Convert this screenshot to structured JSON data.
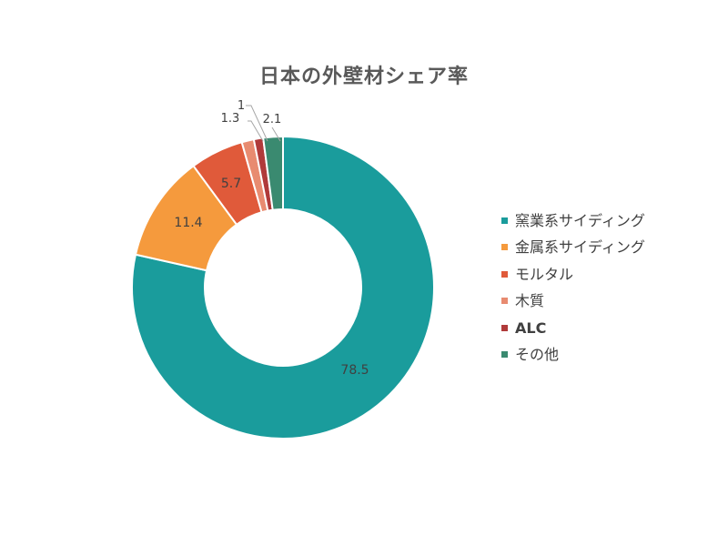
{
  "chart_data": {
    "type": "pie",
    "donut": true,
    "title": "日本の外壁材シェア率",
    "categories": [
      "窯業系サイディング",
      "金属系サイディング",
      "モルタル",
      "木質",
      "ALC",
      "その他"
    ],
    "values": [
      78.5,
      11.4,
      5.7,
      1.3,
      1,
      2.1
    ],
    "value_labels": [
      "78.5",
      "11.4",
      "5.7",
      "1.3",
      "1",
      "2.1"
    ],
    "colors": [
      "#1a9c9c",
      "#f59a3d",
      "#e05a3a",
      "#e88b70",
      "#b03a3a",
      "#3a8a70"
    ],
    "legend_placement": "right",
    "legend_bold": [
      false,
      false,
      false,
      false,
      true,
      false
    ],
    "start": "top",
    "direction": "clockwise"
  }
}
